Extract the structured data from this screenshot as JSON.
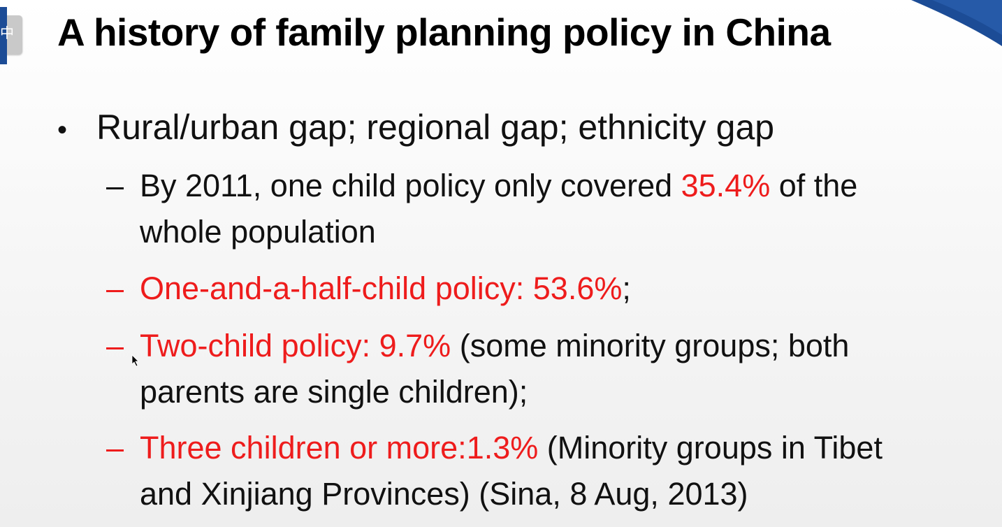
{
  "window": {
    "tab_label": "中"
  },
  "slide": {
    "title": "A history of family planning policy in China",
    "bullet": {
      "marker": "•",
      "text": "Rural/urban gap; regional gap; ethnicity gap"
    },
    "sub_items": [
      {
        "dash": "–",
        "before": "By 2011, one child policy only covered ",
        "highlight": "35.4%",
        "after": " of the whole population"
      },
      {
        "dash": "–",
        "highlight": "One-and-a-half-child policy: 53.6%",
        "after": ";"
      },
      {
        "dash": "–",
        "highlight": "Two-child policy: 9.7%",
        "after": " (some minority groups; both parents are single children);"
      },
      {
        "dash": "–",
        "highlight": "Three children or more:1.3%",
        "after": " (Minority groups in Tibet and Xinjiang Provinces) (Sina, 8 Aug, 2013)"
      }
    ]
  },
  "colors": {
    "accent_red": "#ee1c1c",
    "brand_blue": "#1c4c96",
    "text": "#111111"
  },
  "icons": {
    "cursor": "mouse-pointer-icon",
    "corner": "corner-swoosh-decoration"
  }
}
